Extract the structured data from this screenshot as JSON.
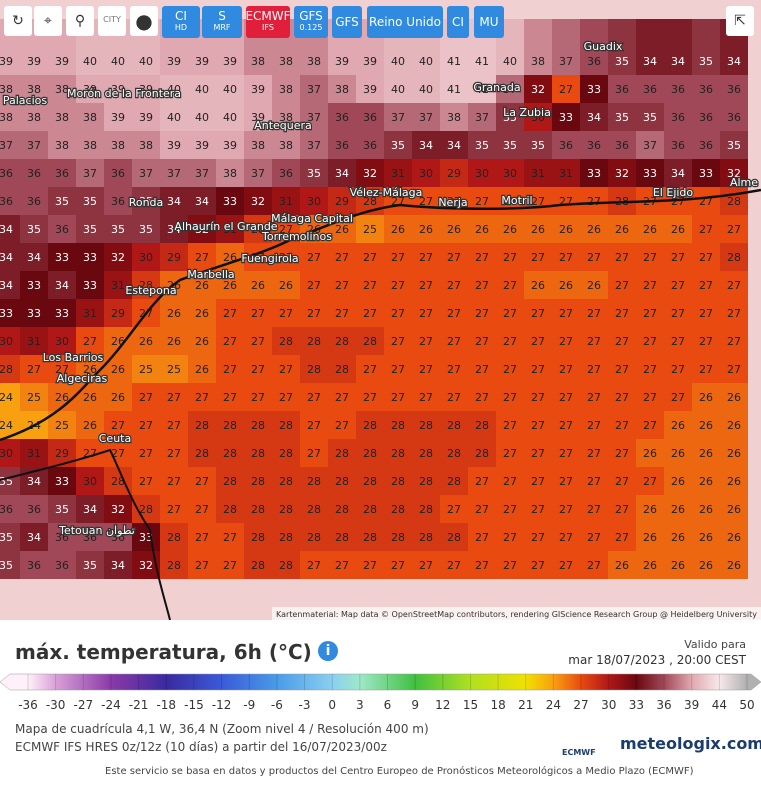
{
  "toolbar": {
    "city": "CITY",
    "buttons": [
      {
        "main": "CI",
        "sub": "HD"
      },
      {
        "main": "S",
        "sub": "MRF"
      },
      {
        "main": "ECMWF",
        "sub": "IFS"
      },
      {
        "main": "GFS",
        "sub": "0.125"
      },
      {
        "main": "GFS",
        "sub": ""
      },
      {
        "main": "Reino Unido",
        "sub": ""
      },
      {
        "main": "CI",
        "sub": ""
      },
      {
        "main": "MU",
        "sub": ""
      }
    ]
  },
  "map": {
    "grid": [
      [
        39,
        39,
        39,
        40,
        40,
        40,
        39,
        39,
        39,
        38,
        38,
        38,
        39,
        39,
        40,
        40,
        41,
        41,
        40,
        38,
        37,
        36,
        35,
        34,
        34,
        35,
        34
      ],
      [
        38,
        38,
        38,
        39,
        39,
        39,
        40,
        40,
        40,
        39,
        38,
        37,
        38,
        39,
        40,
        40,
        41,
        41,
        37,
        32,
        27,
        33,
        36,
        36,
        36,
        36,
        36
      ],
      [
        38,
        38,
        38,
        38,
        39,
        39,
        40,
        40,
        40,
        39,
        38,
        37,
        36,
        36,
        37,
        37,
        38,
        37,
        35,
        30,
        33,
        34,
        35,
        35,
        36,
        36,
        36
      ],
      [
        37,
        37,
        38,
        38,
        38,
        38,
        39,
        39,
        39,
        38,
        38,
        37,
        36,
        36,
        35,
        34,
        34,
        35,
        35,
        35,
        36,
        36,
        36,
        37,
        36,
        36,
        35
      ],
      [
        36,
        36,
        36,
        37,
        36,
        37,
        37,
        37,
        38,
        37,
        36,
        35,
        34,
        32,
        31,
        30,
        29,
        30,
        30,
        31,
        31,
        33,
        32,
        33,
        34,
        33,
        32
      ],
      [
        36,
        36,
        35,
        35,
        36,
        35,
        34,
        34,
        33,
        32,
        31,
        30,
        29,
        28,
        27,
        27,
        27,
        27,
        27,
        27,
        27,
        27,
        28,
        27,
        27,
        27,
        28
      ],
      [
        34,
        35,
        36,
        35,
        35,
        35,
        34,
        32,
        31,
        28,
        27,
        26,
        26,
        25,
        26,
        26,
        26,
        26,
        26,
        26,
        26,
        26,
        26,
        26,
        26,
        27,
        27
      ],
      [
        34,
        34,
        33,
        33,
        32,
        30,
        29,
        27,
        26,
        27,
        27,
        27,
        27,
        27,
        27,
        27,
        27,
        27,
        27,
        27,
        27,
        27,
        27,
        27,
        27,
        27,
        28
      ],
      [
        34,
        33,
        34,
        33,
        31,
        28,
        26,
        26,
        26,
        26,
        26,
        27,
        27,
        27,
        27,
        27,
        27,
        27,
        27,
        26,
        26,
        26,
        27,
        27,
        27,
        27,
        27
      ],
      [
        33,
        33,
        33,
        31,
        29,
        27,
        26,
        26,
        27,
        27,
        27,
        27,
        27,
        27,
        27,
        27,
        27,
        27,
        27,
        27,
        27,
        27,
        27,
        27,
        27,
        27,
        27
      ],
      [
        30,
        31,
        30,
        27,
        26,
        26,
        26,
        26,
        27,
        27,
        28,
        28,
        28,
        28,
        27,
        27,
        27,
        27,
        27,
        27,
        27,
        27,
        27,
        27,
        27,
        27,
        27
      ],
      [
        28,
        27,
        27,
        26,
        26,
        25,
        25,
        26,
        27,
        27,
        27,
        28,
        28,
        27,
        27,
        27,
        27,
        27,
        27,
        27,
        27,
        27,
        27,
        27,
        27,
        27,
        27
      ],
      [
        24,
        25,
        26,
        26,
        26,
        27,
        27,
        27,
        27,
        27,
        27,
        27,
        27,
        27,
        27,
        27,
        27,
        27,
        27,
        27,
        27,
        27,
        27,
        27,
        27,
        26,
        26
      ],
      [
        24,
        24,
        25,
        26,
        27,
        27,
        27,
        28,
        28,
        28,
        28,
        27,
        27,
        28,
        28,
        28,
        28,
        28,
        27,
        27,
        27,
        27,
        27,
        27,
        26,
        26,
        26
      ],
      [
        30,
        31,
        29,
        27,
        27,
        27,
        27,
        28,
        28,
        28,
        28,
        27,
        28,
        28,
        28,
        28,
        28,
        28,
        27,
        27,
        27,
        27,
        27,
        26,
        26,
        26,
        26
      ],
      [
        35,
        34,
        33,
        30,
        28,
        27,
        27,
        27,
        28,
        28,
        28,
        28,
        28,
        28,
        28,
        28,
        28,
        27,
        27,
        27,
        27,
        27,
        27,
        27,
        26,
        26,
        26
      ],
      [
        36,
        36,
        35,
        34,
        32,
        28,
        27,
        27,
        28,
        28,
        28,
        28,
        28,
        28,
        28,
        28,
        27,
        27,
        27,
        27,
        27,
        27,
        27,
        26,
        26,
        26,
        26
      ],
      [
        35,
        34,
        36,
        36,
        36,
        33,
        28,
        27,
        27,
        28,
        28,
        28,
        28,
        28,
        28,
        28,
        28,
        27,
        27,
        27,
        27,
        27,
        27,
        26,
        26,
        26,
        26
      ],
      [
        35,
        36,
        36,
        35,
        34,
        32,
        28,
        27,
        27,
        28,
        28,
        27,
        27,
        27,
        27,
        27,
        27,
        27,
        27,
        27,
        27,
        27,
        26,
        26,
        26,
        26,
        26
      ]
    ],
    "places": [
      "Guadix",
      "Morón de la Frontera",
      "Palacios",
      "Granada",
      "La Zubia",
      "Antequera",
      "Vélez-Málaga",
      "Nerja",
      "Motril",
      "El Ejido",
      "Alme",
      "Ronda",
      "Alhaurín el Grande",
      "Málaga Capital",
      "Torremolinos",
      "Fuengirola",
      "Marbella",
      "Estepona",
      "Los Barrios",
      "Algeciras",
      "Ceuta",
      "Tetouan تطوان"
    ],
    "attribution": "Kartenmaterial: Map data © OpenStreetMap contributors, rendering GIScience Research Group @ Heidelberg University"
  },
  "legend": {
    "title": "máx. temperatura, 6h (°C)",
    "valid_label": "Valido para",
    "valid_time": "mar 18/07/2023 , 20:00 CEST",
    "ticks": [
      -36,
      -30,
      -27,
      -24,
      -21,
      -18,
      -15,
      -12,
      -9,
      -6,
      -3,
      0,
      3,
      6,
      9,
      12,
      15,
      18,
      21,
      24,
      27,
      30,
      33,
      36,
      39,
      44,
      50
    ]
  },
  "info": {
    "line1": "Mapa de cuadrícula 4,1 W, 36,4 N (Zoom nivel 4 / Resolución 400 m)",
    "line2": "ECMWF IFS HRES 0z/12z (10 días) a partir del 16/07/2023/00z",
    "ecmwf": "ECMWF",
    "brand": "meteologix.com"
  },
  "footer": "Este servicio se basa en datos y productos del Centro Europeo de Pronósticos Meteorológicos a Medio Plazo (ECMWF)"
}
